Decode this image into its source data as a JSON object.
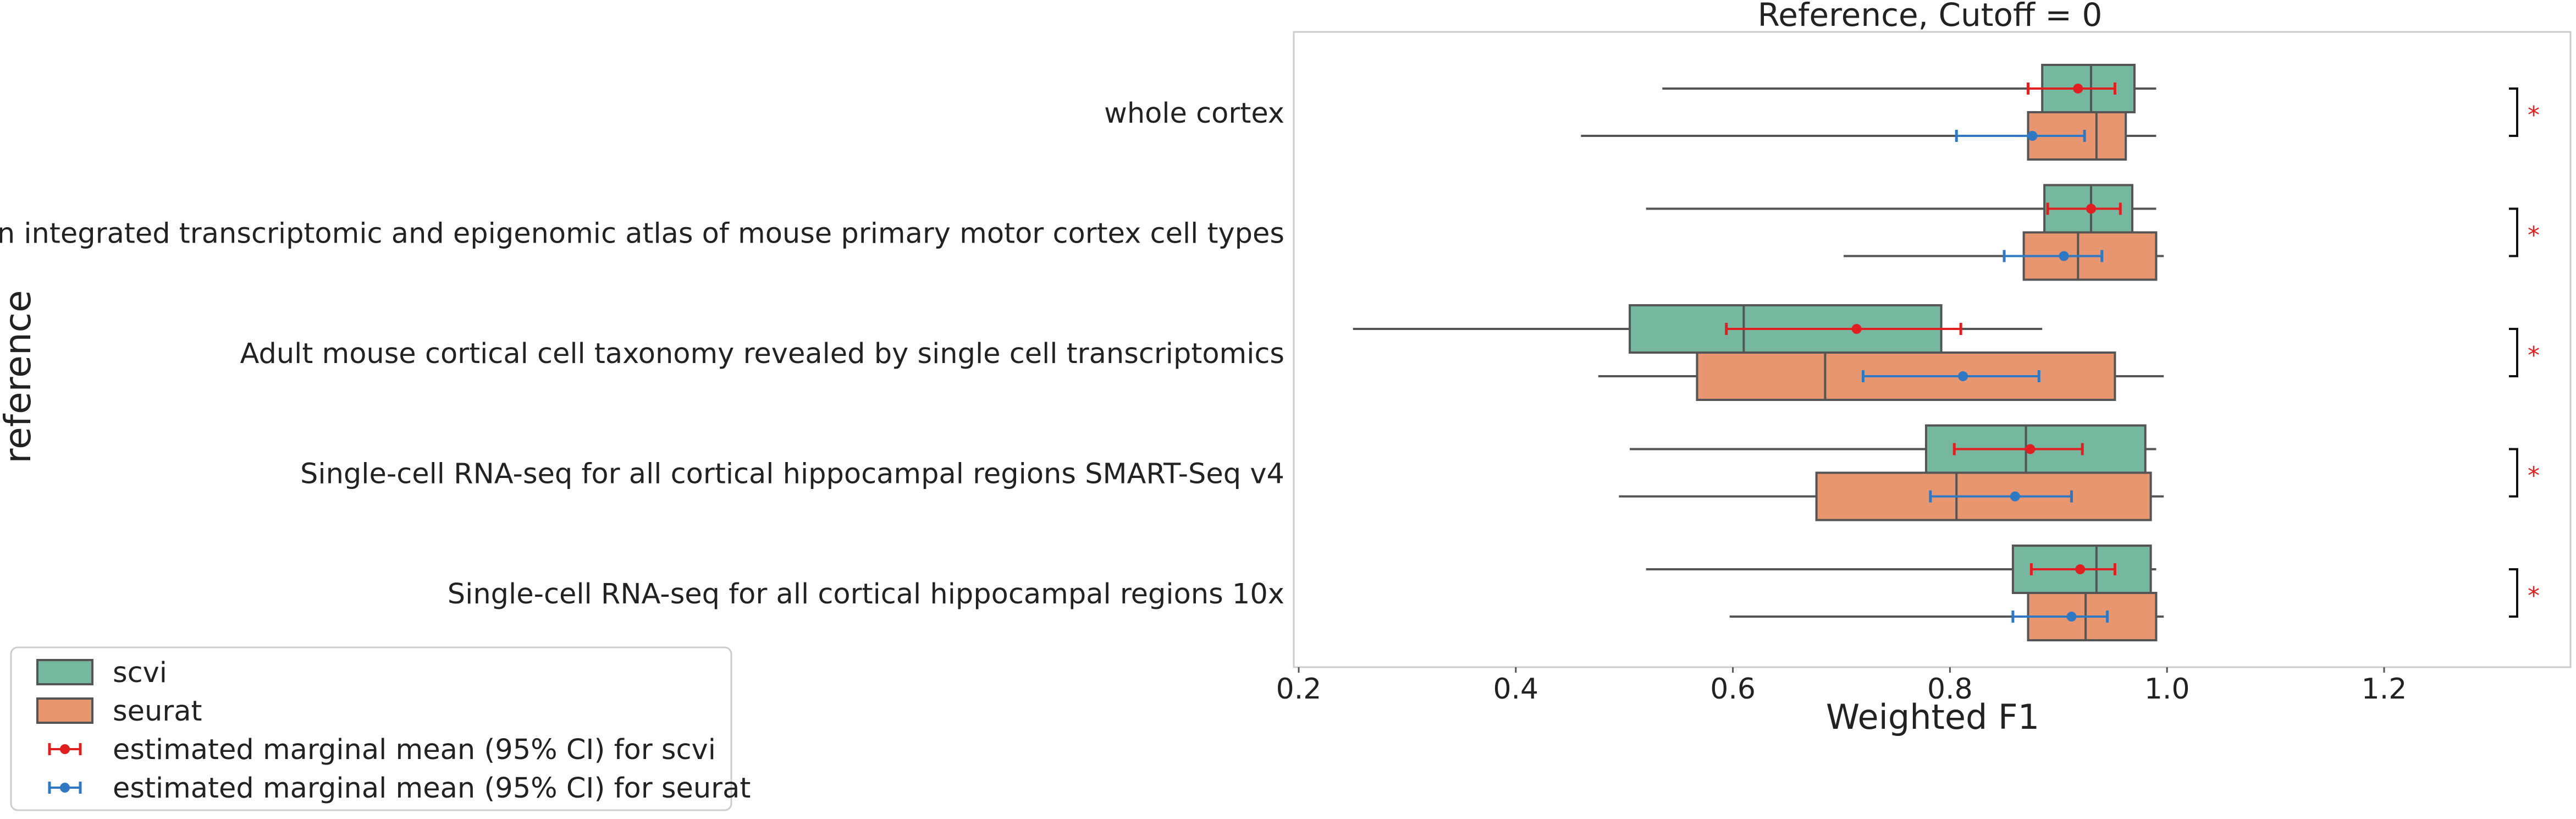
{
  "chart_data": {
    "type": "boxplot",
    "orientation": "horizontal",
    "title": "Reference, Cutoff = 0",
    "xlabel": "Weighted F1",
    "ylabel": "reference",
    "xlim": [
      0.2,
      1.37
    ],
    "xticks": [
      0.2,
      0.4,
      0.6,
      0.8,
      1.0,
      1.2
    ],
    "xtick_labels": [
      "0.2",
      "0.4",
      "0.6",
      "0.8",
      "1.0",
      "1.2"
    ],
    "grid": false,
    "legend_position": "bottom-left",
    "colors": {
      "scvi": "#76b7a0",
      "seurat": "#e8966f",
      "scvi_mean": "#e02020",
      "seurat_mean": "#2f78c4",
      "significance": "#e02020",
      "box_edge": "#555555"
    },
    "categories": [
      "whole cortex",
      "An integrated transcriptomic and epigenomic atlas of mouse primary motor cortex cell types",
      "Adult mouse cortical cell taxonomy revealed by single cell transcriptomics",
      "Single-cell RNA-seq for all cortical  hippocampal regions SMART-Seq v4",
      "Single-cell RNA-seq for all cortical  hippocampal regions 10x"
    ],
    "series": [
      {
        "name": "scvi",
        "boxes": [
          {
            "whislo": 0.535,
            "q1": 0.885,
            "med": 0.93,
            "q3": 0.97,
            "whishi": 0.99
          },
          {
            "whislo": 0.52,
            "q1": 0.887,
            "med": 0.93,
            "q3": 0.968,
            "whishi": 0.99
          },
          {
            "whislo": 0.25,
            "q1": 0.505,
            "med": 0.61,
            "q3": 0.792,
            "whishi": 0.885
          },
          {
            "whislo": 0.505,
            "q1": 0.778,
            "med": 0.87,
            "q3": 0.98,
            "whishi": 0.99
          },
          {
            "whislo": 0.52,
            "q1": 0.858,
            "med": 0.935,
            "q3": 0.985,
            "whishi": 0.99
          }
        ],
        "marginal_mean": [
          {
            "mean": 0.918,
            "lo": 0.872,
            "hi": 0.952
          },
          {
            "mean": 0.93,
            "lo": 0.89,
            "hi": 0.957
          },
          {
            "mean": 0.714,
            "lo": 0.594,
            "hi": 0.81
          },
          {
            "mean": 0.874,
            "lo": 0.804,
            "hi": 0.922
          },
          {
            "mean": 0.92,
            "lo": 0.875,
            "hi": 0.952
          }
        ]
      },
      {
        "name": "seurat",
        "boxes": [
          {
            "whislo": 0.46,
            "q1": 0.872,
            "med": 0.935,
            "q3": 0.962,
            "whishi": 0.99
          },
          {
            "whislo": 0.702,
            "q1": 0.868,
            "med": 0.918,
            "q3": 0.99,
            "whishi": 0.997
          },
          {
            "whislo": 0.476,
            "q1": 0.567,
            "med": 0.685,
            "q3": 0.952,
            "whishi": 0.997
          },
          {
            "whislo": 0.495,
            "q1": 0.677,
            "med": 0.806,
            "q3": 0.985,
            "whishi": 0.997
          },
          {
            "whislo": 0.597,
            "q1": 0.872,
            "med": 0.925,
            "q3": 0.99,
            "whishi": 0.997
          }
        ],
        "marginal_mean": [
          {
            "mean": 0.876,
            "lo": 0.806,
            "hi": 0.924
          },
          {
            "mean": 0.905,
            "lo": 0.85,
            "hi": 0.94
          },
          {
            "mean": 0.812,
            "lo": 0.72,
            "hi": 0.882
          },
          {
            "mean": 0.86,
            "lo": 0.782,
            "hi": 0.912
          },
          {
            "mean": 0.912,
            "lo": 0.858,
            "hi": 0.945
          }
        ]
      }
    ],
    "significance": [
      "*",
      "*",
      "*",
      "*",
      "*"
    ],
    "legend": [
      {
        "label": "scvi",
        "kind": "patch",
        "series": "scvi"
      },
      {
        "label": "seurat",
        "kind": "patch",
        "series": "seurat"
      },
      {
        "label": "estimated marginal mean (95% CI) for scvi",
        "kind": "errorbar",
        "series": "scvi"
      },
      {
        "label": "estimated marginal mean (95% CI) for seurat",
        "kind": "errorbar",
        "series": "seurat"
      }
    ]
  }
}
